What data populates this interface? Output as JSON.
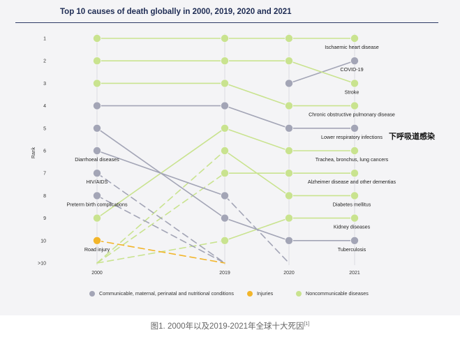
{
  "chart_data": {
    "type": "line",
    "title": "Top 10 causes of death globally in 2000, 2019, 2020 and 2021",
    "xlabel": "",
    "ylabel": "Rank",
    "categories": [
      "2000",
      "2019",
      "2020",
      "2021"
    ],
    "y_ticks": [
      "1",
      "2",
      "3",
      "4",
      "5",
      "6",
      "7",
      "8",
      "9",
      "10",
      ">10"
    ],
    "colors": {
      "communicable": "#a3a5b6",
      "injuries": "#f2b52a",
      "noncommunicable": "#c9e38f",
      "dark": "#555"
    },
    "series": [
      {
        "name": "Ischaemic heart disease",
        "group": "noncommunicable",
        "ranks": [
          1,
          1,
          1,
          1
        ],
        "label_year": 3,
        "label_pos": "below-left"
      },
      {
        "name": "COVID-19",
        "group": "communicable",
        "ranks": [
          null,
          null,
          3,
          2
        ],
        "label_year": 3,
        "label_pos": "below-left"
      },
      {
        "name": "Stroke",
        "group": "noncommunicable",
        "ranks": [
          2,
          2,
          2,
          3
        ],
        "label_year": 3,
        "label_pos": "below"
      },
      {
        "name": "Chronic obstructive pulmonary disease",
        "group": "noncommunicable",
        "ranks": [
          3,
          3,
          4,
          4
        ],
        "label_year": 3,
        "label_pos": "below-left"
      },
      {
        "name": "Lower respiratory infections",
        "group": "communicable",
        "ranks": [
          4,
          4,
          5,
          5
        ],
        "label_year": 3,
        "label_pos": "below-left"
      },
      {
        "name": "Trachea, bronchus, lung cancers",
        "group": "noncommunicable",
        "ranks": [
          9,
          5,
          6,
          6
        ],
        "label_year": 3,
        "label_pos": "below-left"
      },
      {
        "name": "Alzheimer disease and other dementias",
        "group": "noncommunicable",
        "ranks": [
          11,
          7,
          7,
          7
        ],
        "label_year": 3,
        "label_pos": "below-left"
      },
      {
        "name": "Diabetes mellitus",
        "group": "noncommunicable",
        "ranks": [
          11,
          6,
          8,
          8
        ],
        "label_year": 3,
        "label_pos": "below-left"
      },
      {
        "name": "Kidney diseases",
        "group": "noncommunicable",
        "ranks": [
          11,
          10,
          9,
          9
        ],
        "label_year": 3,
        "label_pos": "below-left"
      },
      {
        "name": "Tuberculosis",
        "group": "communicable",
        "ranks": [
          5,
          9,
          10,
          10
        ],
        "label_year": 3,
        "label_pos": "below-left"
      },
      {
        "name": "Diarrhoeal diseases",
        "group": "communicable",
        "ranks": [
          6,
          8,
          11,
          null
        ],
        "label_year": 0,
        "label_pos": "below"
      },
      {
        "name": "HIV/AIDS",
        "group": "communicable",
        "ranks": [
          7,
          11,
          null,
          null
        ],
        "label_year": 0,
        "label_pos": "below-left"
      },
      {
        "name": "Preterm birth complications",
        "group": "communicable",
        "ranks": [
          8,
          11,
          null,
          null
        ],
        "label_year": 0,
        "label_pos": "below"
      },
      {
        "name": "Road injury",
        "group": "injuries",
        "ranks": [
          10,
          11,
          null,
          null
        ],
        "label_year": 0,
        "label_pos": "below"
      }
    ],
    "legend": [
      {
        "label": "Communicable, maternal, perinatal and nutritional conditions",
        "group": "communicable"
      },
      {
        "label": "Injuries",
        "group": "injuries"
      },
      {
        "label": "Noncommunicable diseases",
        "group": "noncommunicable"
      }
    ]
  },
  "overlay_text": "下呼吸道感染",
  "caption": {
    "text": "图1. 2000年以及2019-2021年全球十大死因",
    "ref": "[1]"
  }
}
